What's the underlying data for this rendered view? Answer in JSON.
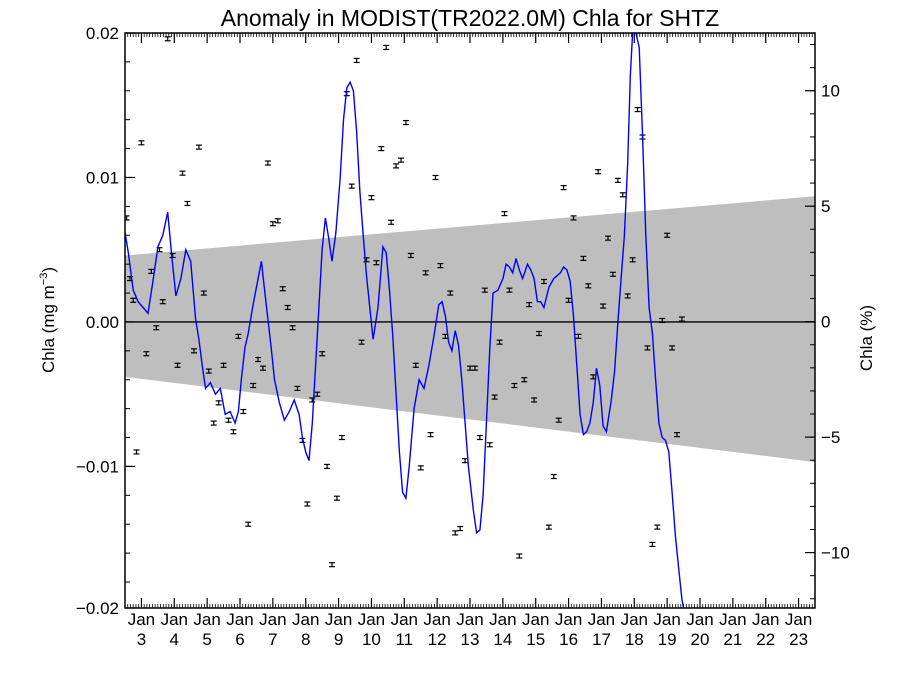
{
  "chart_data": {
    "type": "line",
    "title": "Anomaly in MODIST(TR2022.0M) Chla for SHTZ",
    "ylabel_left": "Chla (mg m",
    "ylabel_left_sup": "−3",
    "ylabel_left_close": ")",
    "ylabel_right": "Chla (%)",
    "ylim": [
      -0.0198,
      0.02
    ],
    "right_ylim": [
      -12.4,
      12.5
    ],
    "xlim": [
      2002.5,
      2023.5
    ],
    "x_month_label": "Jan",
    "yticks_left": [
      {
        "v": 0.02,
        "label": "0.02"
      },
      {
        "v": 0.01,
        "label": "0.01"
      },
      {
        "v": 0.0,
        "label": "0.00"
      },
      {
        "v": -0.01,
        "label": "−0.01"
      },
      {
        "v": -0.02,
        "label": "−0.02"
      }
    ],
    "yticks_right": [
      {
        "v": 10,
        "label": "10"
      },
      {
        "v": 5,
        "label": "5"
      },
      {
        "v": 0,
        "label": "0"
      },
      {
        "v": -5,
        "label": "−5"
      },
      {
        "v": -10,
        "label": "−10"
      }
    ],
    "xticks": [
      {
        "x": 2003,
        "label": "3"
      },
      {
        "x": 2004,
        "label": "4"
      },
      {
        "x": 2005,
        "label": "5"
      },
      {
        "x": 2006,
        "label": "6"
      },
      {
        "x": 2007,
        "label": "7"
      },
      {
        "x": 2008,
        "label": "8"
      },
      {
        "x": 2009,
        "label": "9"
      },
      {
        "x": 2010,
        "label": "10"
      },
      {
        "x": 2011,
        "label": "11"
      },
      {
        "x": 2012,
        "label": "12"
      },
      {
        "x": 2013,
        "label": "13"
      },
      {
        "x": 2014,
        "label": "14"
      },
      {
        "x": 2015,
        "label": "15"
      },
      {
        "x": 2016,
        "label": "16"
      },
      {
        "x": 2017,
        "label": "17"
      },
      {
        "x": 2018,
        "label": "18"
      },
      {
        "x": 2019,
        "label": "19"
      },
      {
        "x": 2020,
        "label": "20"
      },
      {
        "x": 2021,
        "label": "21"
      },
      {
        "x": 2022,
        "label": "22"
      },
      {
        "x": 2023,
        "label": "23"
      }
    ],
    "trend_band": {
      "upper": [
        [
          2002.5,
          0.0046
        ],
        [
          2023.5,
          0.0087
        ]
      ],
      "lower": [
        [
          2002.5,
          -0.0038
        ],
        [
          2023.5,
          -0.0097
        ]
      ],
      "color": "#bebebe"
    },
    "smoothed_line": {
      "color": "#0000ff",
      "points": [
        [
          2002.5,
          0.0062
        ],
        [
          2002.6,
          0.0048
        ],
        [
          2002.75,
          0.0022
        ],
        [
          2002.9,
          0.0014
        ],
        [
          2003.05,
          0.001
        ],
        [
          2003.2,
          0.0006
        ],
        [
          2003.35,
          0.0028
        ],
        [
          2003.5,
          0.0052
        ],
        [
          2003.65,
          0.006
        ],
        [
          2003.8,
          0.0076
        ],
        [
          2003.92,
          0.0046
        ],
        [
          2004.05,
          0.0018
        ],
        [
          2004.2,
          0.003
        ],
        [
          2004.35,
          0.005
        ],
        [
          2004.5,
          0.0042
        ],
        [
          2004.65,
          0.0002
        ],
        [
          2004.75,
          -0.0012
        ],
        [
          2004.85,
          -0.003
        ],
        [
          2004.95,
          -0.0046
        ],
        [
          2005.1,
          -0.0042
        ],
        [
          2005.25,
          -0.005
        ],
        [
          2005.4,
          -0.0046
        ],
        [
          2005.55,
          -0.0064
        ],
        [
          2005.7,
          -0.0062
        ],
        [
          2005.85,
          -0.007
        ],
        [
          2005.95,
          -0.0062
        ],
        [
          2006.05,
          -0.0038
        ],
        [
          2006.15,
          -0.0018
        ],
        [
          2006.25,
          -0.0008
        ],
        [
          2006.4,
          0.0012
        ],
        [
          2006.55,
          0.003
        ],
        [
          2006.65,
          0.0042
        ],
        [
          2006.75,
          0.0022
        ],
        [
          2006.85,
          0.0002
        ],
        [
          2006.95,
          -0.0018
        ],
        [
          2007.05,
          -0.004
        ],
        [
          2007.2,
          -0.0056
        ],
        [
          2007.35,
          -0.0068
        ],
        [
          2007.5,
          -0.0062
        ],
        [
          2007.65,
          -0.0054
        ],
        [
          2007.8,
          -0.0064
        ],
        [
          2007.9,
          -0.008
        ],
        [
          2008.0,
          -0.009
        ],
        [
          2008.1,
          -0.0096
        ],
        [
          2008.2,
          -0.007
        ],
        [
          2008.3,
          -0.003
        ],
        [
          2008.4,
          0.001
        ],
        [
          2008.5,
          0.005
        ],
        [
          2008.6,
          0.0072
        ],
        [
          2008.7,
          0.0058
        ],
        [
          2008.8,
          0.0042
        ],
        [
          2008.92,
          0.0062
        ],
        [
          2009.05,
          0.01
        ],
        [
          2009.15,
          0.014
        ],
        [
          2009.25,
          0.0162
        ],
        [
          2009.35,
          0.0166
        ],
        [
          2009.45,
          0.016
        ],
        [
          2009.55,
          0.0132
        ],
        [
          2009.65,
          0.009
        ],
        [
          2009.75,
          0.006
        ],
        [
          2009.85,
          0.0032
        ],
        [
          2009.95,
          0.001
        ],
        [
          2010.05,
          -0.0012
        ],
        [
          2010.2,
          0.001
        ],
        [
          2010.35,
          0.0052
        ],
        [
          2010.45,
          0.0048
        ],
        [
          2010.55,
          0.0022
        ],
        [
          2010.65,
          -0.001
        ],
        [
          2010.75,
          -0.005
        ],
        [
          2010.85,
          -0.009
        ],
        [
          2010.95,
          -0.0118
        ],
        [
          2011.05,
          -0.0122
        ],
        [
          2011.15,
          -0.01
        ],
        [
          2011.3,
          -0.006
        ],
        [
          2011.45,
          -0.004
        ],
        [
          2011.6,
          -0.0046
        ],
        [
          2011.75,
          -0.003
        ],
        [
          2011.9,
          -0.001
        ],
        [
          2012.05,
          0.0012
        ],
        [
          2012.15,
          0.0014
        ],
        [
          2012.25,
          0.0004
        ],
        [
          2012.35,
          -0.0014
        ],
        [
          2012.45,
          -0.002
        ],
        [
          2012.55,
          -0.0006
        ],
        [
          2012.65,
          -0.0016
        ],
        [
          2012.75,
          -0.004
        ],
        [
          2012.85,
          -0.007
        ],
        [
          2012.95,
          -0.01
        ],
        [
          2013.1,
          -0.013
        ],
        [
          2013.2,
          -0.0146
        ],
        [
          2013.3,
          -0.0144
        ],
        [
          2013.4,
          -0.012
        ],
        [
          2013.5,
          -0.007
        ],
        [
          2013.6,
          -0.002
        ],
        [
          2013.7,
          0.002
        ],
        [
          2013.85,
          0.0022
        ],
        [
          2014.0,
          0.003
        ],
        [
          2014.1,
          0.004
        ],
        [
          2014.2,
          0.0038
        ],
        [
          2014.3,
          0.0034
        ],
        [
          2014.4,
          0.0044
        ],
        [
          2014.5,
          0.0036
        ],
        [
          2014.6,
          0.003
        ],
        [
          2014.75,
          0.004
        ],
        [
          2014.85,
          0.0036
        ],
        [
          2014.95,
          0.003
        ],
        [
          2015.05,
          0.0014
        ],
        [
          2015.15,
          0.0014
        ],
        [
          2015.25,
          0.001
        ],
        [
          2015.4,
          0.0024
        ],
        [
          2015.55,
          0.003
        ],
        [
          2015.65,
          0.0032
        ],
        [
          2015.75,
          0.0034
        ],
        [
          2015.85,
          0.0038
        ],
        [
          2015.95,
          0.0036
        ],
        [
          2016.05,
          0.0028
        ],
        [
          2016.15,
          0.0004
        ],
        [
          2016.25,
          -0.003
        ],
        [
          2016.35,
          -0.0064
        ],
        [
          2016.45,
          -0.0078
        ],
        [
          2016.55,
          -0.0076
        ],
        [
          2016.65,
          -0.007
        ],
        [
          2016.75,
          -0.0056
        ],
        [
          2016.85,
          -0.0032
        ],
        [
          2016.95,
          -0.0044
        ],
        [
          2017.05,
          -0.0072
        ],
        [
          2017.15,
          -0.0076
        ],
        [
          2017.3,
          -0.0054
        ],
        [
          2017.4,
          -0.0034
        ],
        [
          2017.5,
          0.0
        ],
        [
          2017.6,
          0.003
        ],
        [
          2017.7,
          0.006
        ],
        [
          2017.8,
          0.011
        ],
        [
          2017.88,
          0.017
        ],
        [
          2017.95,
          0.02
        ],
        [
          2018.05,
          0.02
        ],
        [
          2018.15,
          0.019
        ],
        [
          2018.25,
          0.013
        ],
        [
          2018.35,
          0.006
        ],
        [
          2018.45,
          0.001
        ],
        [
          2018.55,
          -0.0008
        ],
        [
          2018.65,
          -0.004
        ],
        [
          2018.75,
          -0.007
        ],
        [
          2018.85,
          -0.008
        ],
        [
          2018.95,
          -0.0082
        ],
        [
          2019.05,
          -0.009
        ],
        [
          2019.15,
          -0.0118
        ],
        [
          2019.25,
          -0.0148
        ],
        [
          2019.35,
          -0.017
        ],
        [
          2019.45,
          -0.0192
        ],
        [
          2019.5,
          -0.0198
        ]
      ]
    },
    "annual_points": {
      "description": "black markers with small error bars",
      "x": [
        2002.55,
        2002.65,
        2002.75,
        2002.85,
        2003.0,
        2003.15,
        2003.3,
        2003.45,
        2003.55,
        2003.65,
        2003.8,
        2003.95,
        2004.1,
        2004.25,
        2004.4,
        2004.6,
        2004.75,
        2004.9,
        2005.05,
        2005.2,
        2005.35,
        2005.5,
        2005.65,
        2005.8,
        2005.95,
        2006.1,
        2006.25,
        2006.4,
        2006.55,
        2006.7,
        2006.85,
        2007.0,
        2007.15,
        2007.3,
        2007.45,
        2007.6,
        2007.75,
        2007.9,
        2008.05,
        2008.2,
        2008.35,
        2008.5,
        2008.65,
        2008.8,
        2008.95,
        2009.1,
        2009.25,
        2009.4,
        2009.55,
        2009.7,
        2009.85,
        2010.0,
        2010.15,
        2010.3,
        2010.45,
        2010.6,
        2010.75,
        2010.9,
        2011.05,
        2011.2,
        2011.35,
        2011.5,
        2011.65,
        2011.8,
        2011.95,
        2012.1,
        2012.25,
        2012.4,
        2012.55,
        2012.7,
        2012.85,
        2013.0,
        2013.15,
        2013.3,
        2013.45,
        2013.6,
        2013.75,
        2013.9,
        2014.05,
        2014.2,
        2014.35,
        2014.5,
        2014.65,
        2014.8,
        2014.95,
        2015.1,
        2015.25,
        2015.4,
        2015.55,
        2015.7,
        2015.85,
        2016.0,
        2016.15,
        2016.3,
        2016.45,
        2016.6,
        2016.75,
        2016.9,
        2017.05,
        2017.2,
        2017.35,
        2017.5,
        2017.65,
        2017.8,
        2017.95,
        2018.1,
        2018.25,
        2018.4,
        2018.55,
        2018.7,
        2018.85,
        2019.0,
        2019.15,
        2019.3,
        2019.45
      ],
      "y": [
        0.0072,
        0.003,
        0.0015,
        -0.009,
        0.0124,
        -0.0022,
        0.0035,
        -0.0004,
        0.005,
        0.0014,
        0.0196,
        0.0046,
        -0.003,
        0.0103,
        0.0082,
        -0.002,
        0.0121,
        0.002,
        -0.0034,
        -0.007,
        -0.0056,
        -0.003,
        -0.0068,
        -0.0076,
        -0.001,
        -0.0062,
        -0.014,
        -0.0044,
        -0.0026,
        -0.0032,
        0.011,
        0.0068,
        0.007,
        0.0023,
        0.001,
        -0.0004,
        -0.0046,
        -0.0082,
        -0.0126,
        -0.0054,
        -0.005,
        -0.0022,
        -0.01,
        -0.0168,
        -0.0122,
        -0.008,
        0.0158,
        0.0094,
        0.0181,
        -0.0014,
        0.0043,
        0.0086,
        0.0041,
        0.012,
        0.019,
        0.0069,
        0.0108,
        0.0112,
        0.0138,
        0.0046,
        -0.003,
        -0.0101,
        0.0034,
        -0.0078,
        0.01,
        0.0039,
        -0.001,
        0.002,
        -0.0146,
        -0.0143,
        -0.0096,
        -0.0032,
        -0.0032,
        -0.008,
        0.0022,
        -0.0085,
        -0.0052,
        -0.0014,
        0.0075,
        0.0022,
        -0.0044,
        -0.0162,
        -0.004,
        0.0012,
        -0.0054,
        -0.0008,
        0.0028,
        -0.0142,
        -0.0107,
        -0.0068,
        0.0093,
        0.0015,
        0.0072,
        -0.001,
        0.0044,
        0.0025,
        -0.0038,
        0.0104,
        0.0011,
        0.0058,
        0.0033,
        0.0098,
        0.0088,
        0.0018,
        0.0043,
        0.0147,
        0.0128,
        -0.0018,
        -0.0154,
        -0.0142,
        0.0001,
        0.006,
        -0.0018,
        -0.0078,
        0.0002
      ]
    }
  }
}
